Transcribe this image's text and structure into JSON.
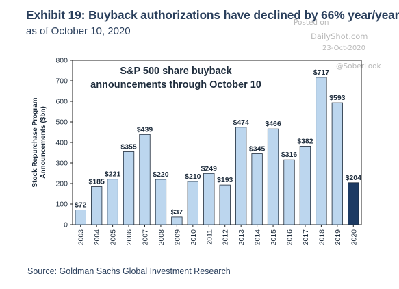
{
  "header": {
    "title": "Exhibit 19: Buyback authorizations have declined by 66% year/year",
    "subtitle": "as of October 10, 2020"
  },
  "watermark": {
    "posted": "Posted on",
    "site": "DailyShot.com",
    "date": "23-Oct-2020",
    "handle": "@SoberLook"
  },
  "footer": {
    "source": "Source: Goldman Sachs Global Investment Research"
  },
  "chart_data": {
    "type": "bar",
    "annotation": [
      "S&P 500 share buyback",
      "announcements through October 10"
    ],
    "ylabel_lines": [
      "Stock Repurchase Program",
      "Announcements ($bn)"
    ],
    "xlabel": "",
    "ylim": [
      0,
      800
    ],
    "yticks": [
      0,
      100,
      200,
      300,
      400,
      500,
      600,
      700,
      800
    ],
    "grid": false,
    "categories": [
      "2003",
      "2004",
      "2005",
      "2006",
      "2007",
      "2008",
      "2009",
      "2010",
      "2011",
      "2012",
      "2013",
      "2014",
      "2015",
      "2016",
      "2017",
      "2018",
      "2019",
      "2020"
    ],
    "values": [
      72,
      185,
      221,
      355,
      439,
      220,
      37,
      210,
      249,
      193,
      474,
      345,
      466,
      316,
      382,
      717,
      593,
      204
    ],
    "value_labels": [
      "$72",
      "$185",
      "$221",
      "$355",
      "$439",
      "$220",
      "$37",
      "$210",
      "$249",
      "$193",
      "$474",
      "$345",
      "$466",
      "$316",
      "$382",
      "$717",
      "$593",
      "$204"
    ],
    "colors": {
      "bar": "#bcd6ee",
      "bar_highlight": "#1c3a63",
      "bar_stroke": "#1e2b3a"
    },
    "highlight_index": 17
  }
}
